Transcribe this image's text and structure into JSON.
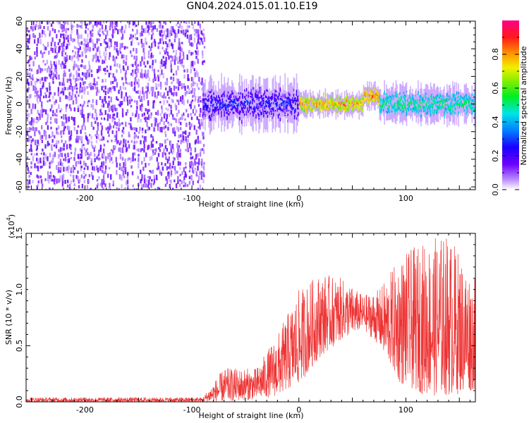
{
  "title": "GN04.2024.015.01.10.E19",
  "chart_data": [
    {
      "type": "heatmap",
      "name": "spectrogram",
      "xlabel": "Height of straight line (km)",
      "ylabel": "Frequency (Hz)",
      "xlim": [
        -255,
        165
      ],
      "ylim": [
        -62,
        60
      ],
      "xticks": [
        -200,
        -100,
        0,
        100
      ],
      "yticks": [
        60,
        40,
        20,
        0,
        -20,
        -40,
        -60
      ],
      "colorbar": {
        "label": "Normalized spectral amplitude",
        "ticks": [
          "0.0",
          "0.2",
          "0.4",
          "0.6",
          "0.8"
        ],
        "range": [
          0,
          1
        ]
      },
      "regions": [
        {
          "x_range": [
            -255,
            -90
          ],
          "freq_range": [
            -62,
            60
          ],
          "amplitude": [
            0.0,
            0.1
          ],
          "pattern": "broadband noise"
        },
        {
          "x_range": [
            -90,
            0
          ],
          "center_freq": 0,
          "half_width_hz": 8,
          "amplitude": [
            0.05,
            0.35
          ]
        },
        {
          "x_range": [
            0,
            60
          ],
          "center_freq": 0,
          "half_width_hz": 4,
          "amplitude": [
            0.5,
            0.9
          ]
        },
        {
          "x_range": [
            60,
            75
          ],
          "center_freq": 6,
          "half_width_hz": 4,
          "amplitude": [
            0.6,
            0.9
          ]
        },
        {
          "x_range": [
            75,
            165
          ],
          "center_freq": 0,
          "half_width_hz": 6,
          "amplitude": [
            0.3,
            0.6
          ]
        }
      ]
    },
    {
      "type": "line",
      "name": "snr",
      "xlabel": "Height of straight line (km)",
      "ylabel": "SNR (10 * v/v)",
      "y_multiplier": "(x10",
      "y_multiplier_exp": "4",
      "y_multiplier_close": ")",
      "xlim": [
        -255,
        165
      ],
      "ylim": [
        0,
        1.5
      ],
      "xticks": [
        -200,
        -100,
        0,
        100
      ],
      "yticks": [
        "0.0",
        "0.5",
        "1.0",
        "1.5"
      ],
      "color": "#ee3333",
      "envelope": [
        {
          "x": -255,
          "lo": 0.0,
          "hi": 0.04
        },
        {
          "x": -90,
          "lo": 0.0,
          "hi": 0.04
        },
        {
          "x": -70,
          "lo": 0.0,
          "hi": 0.3
        },
        {
          "x": -40,
          "lo": 0.02,
          "hi": 0.3
        },
        {
          "x": -20,
          "lo": 0.05,
          "hi": 0.6
        },
        {
          "x": 0,
          "lo": 0.15,
          "hi": 1.0
        },
        {
          "x": 20,
          "lo": 0.4,
          "hi": 1.15
        },
        {
          "x": 40,
          "lo": 0.55,
          "hi": 1.1
        },
        {
          "x": 60,
          "lo": 0.65,
          "hi": 0.95
        },
        {
          "x": 75,
          "lo": 0.5,
          "hi": 1.0
        },
        {
          "x": 95,
          "lo": 0.15,
          "hi": 1.3
        },
        {
          "x": 120,
          "lo": 0.05,
          "hi": 1.45
        },
        {
          "x": 140,
          "lo": 0.05,
          "hi": 1.5
        },
        {
          "x": 165,
          "lo": 0.1,
          "hi": 1.1
        }
      ]
    }
  ]
}
